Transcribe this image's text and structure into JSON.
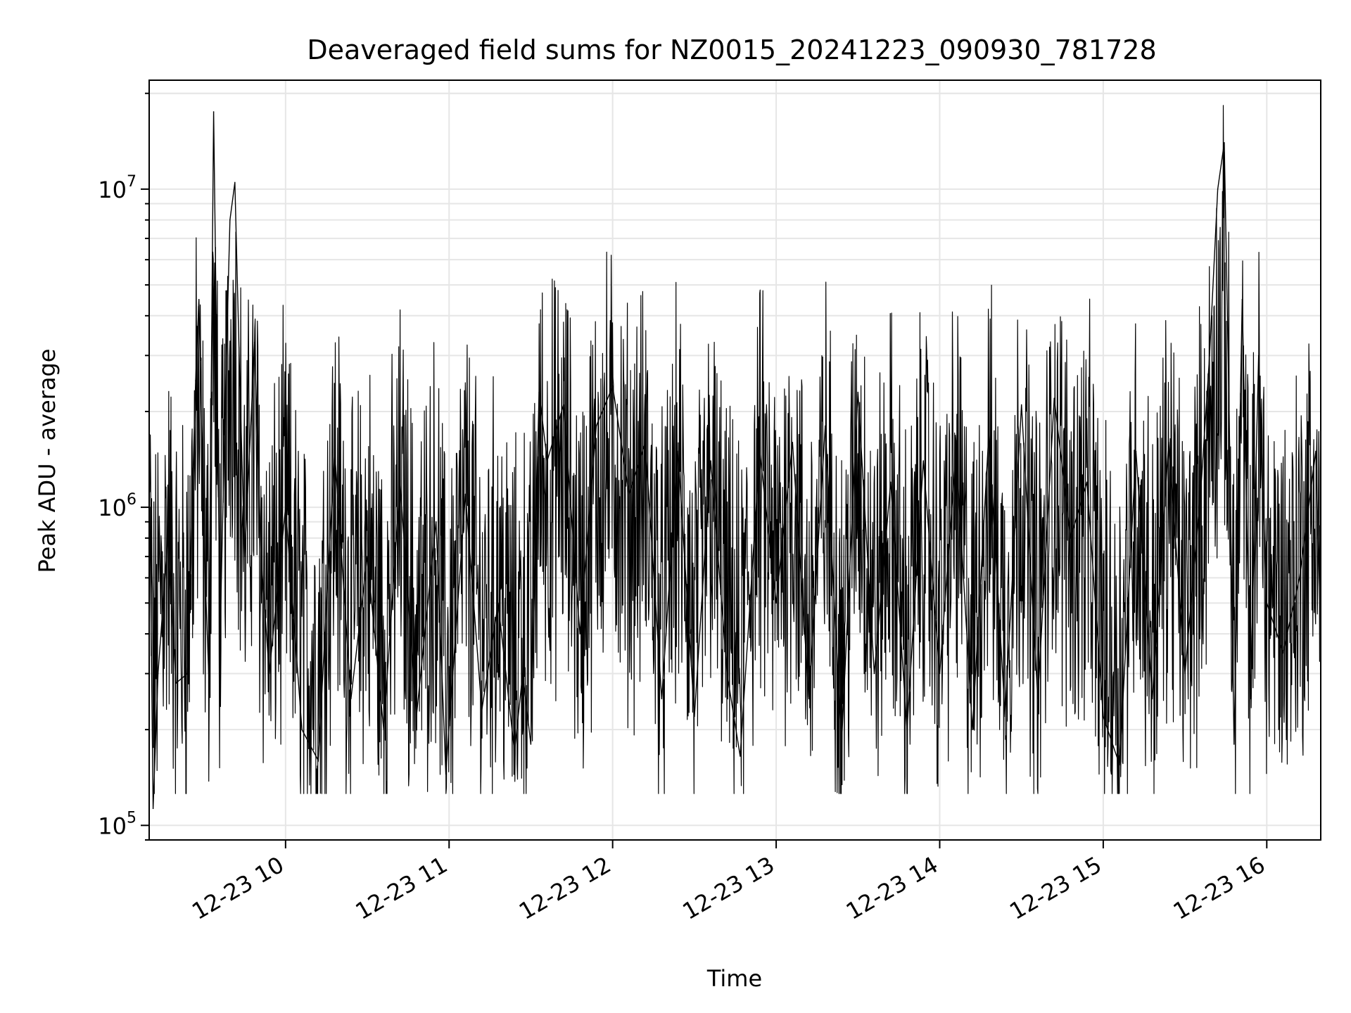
{
  "chart_data": {
    "type": "line",
    "title": "Deaveraged field sums for NZ0015_20241223_090930_781728",
    "xlabel": "Time",
    "ylabel": "Peak ADU - average",
    "yscale": "log",
    "grid": true,
    "line_color": "#000000",
    "x_tick_labels": [
      "12-23 10",
      "12-23 11",
      "12-23 12",
      "12-23 13",
      "12-23 14",
      "12-23 15",
      "12-23 16"
    ],
    "x_range_hours": [
      9.166,
      16.33
    ],
    "ylim": [
      90000,
      22000000
    ],
    "y_tick_bases": [
      "10",
      "10",
      "10"
    ],
    "y_tick_exponents": [
      "5",
      "6",
      "7"
    ],
    "series": [
      {
        "points": [
          [
            9.17,
            1000000
          ],
          [
            9.19,
            113000
          ],
          [
            9.22,
            300000
          ],
          [
            9.28,
            800000
          ],
          [
            9.33,
            280000
          ],
          [
            9.4,
            300000
          ],
          [
            9.45,
            2500000
          ],
          [
            9.47,
            4500000
          ],
          [
            9.5,
            800000
          ],
          [
            9.53,
            300000
          ],
          [
            9.56,
            17500000
          ],
          [
            9.6,
            400000
          ],
          [
            9.63,
            2000000
          ],
          [
            9.66,
            8000000
          ],
          [
            9.69,
            10500000
          ],
          [
            9.72,
            2500000
          ],
          [
            9.75,
            700000
          ],
          [
            9.78,
            1500000
          ],
          [
            9.81,
            3300000
          ],
          [
            9.85,
            700000
          ],
          [
            9.9,
            300000
          ],
          [
            10.0,
            1000000
          ],
          [
            10.1,
            200000
          ],
          [
            10.2,
            160000
          ],
          [
            10.3,
            1500000
          ],
          [
            10.4,
            250000
          ],
          [
            10.5,
            700000
          ],
          [
            10.6,
            200000
          ],
          [
            10.7,
            1200000
          ],
          [
            10.8,
            220000
          ],
          [
            10.92,
            900000
          ],
          [
            10.98,
            145000
          ],
          [
            11.1,
            1100000
          ],
          [
            11.2,
            230000
          ],
          [
            11.3,
            500000
          ],
          [
            11.4,
            170000
          ],
          [
            11.45,
            300000
          ],
          [
            11.5,
            180000
          ],
          [
            11.55,
            2300000
          ],
          [
            11.6,
            1400000
          ],
          [
            11.7,
            2100000
          ],
          [
            11.8,
            400000
          ],
          [
            11.9,
            1800000
          ],
          [
            12.0,
            2400000
          ],
          [
            12.1,
            1100000
          ],
          [
            12.2,
            1600000
          ],
          [
            12.3,
            250000
          ],
          [
            12.4,
            1500000
          ],
          [
            12.5,
            220000
          ],
          [
            12.6,
            1400000
          ],
          [
            12.7,
            300000
          ],
          [
            12.78,
            165000
          ],
          [
            12.9,
            1500000
          ],
          [
            13.0,
            500000
          ],
          [
            13.1,
            1600000
          ],
          [
            13.2,
            250000
          ],
          [
            13.3,
            1800000
          ],
          [
            13.4,
            180000
          ],
          [
            13.5,
            2300000
          ],
          [
            13.6,
            300000
          ],
          [
            13.7,
            1200000
          ],
          [
            13.8,
            200000
          ],
          [
            13.9,
            1400000
          ],
          [
            14.0,
            300000
          ],
          [
            14.1,
            1500000
          ],
          [
            14.2,
            200000
          ],
          [
            14.3,
            1700000
          ],
          [
            14.4,
            220000
          ],
          [
            14.5,
            2100000
          ],
          [
            14.6,
            250000
          ],
          [
            14.7,
            2200000
          ],
          [
            14.8,
            800000
          ],
          [
            14.9,
            1200000
          ],
          [
            15.0,
            220000
          ],
          [
            15.1,
            155000
          ],
          [
            15.2,
            1500000
          ],
          [
            15.3,
            250000
          ],
          [
            15.4,
            1600000
          ],
          [
            15.5,
            300000
          ],
          [
            15.6,
            1200000
          ],
          [
            15.65,
            3000000
          ],
          [
            15.7,
            10000000
          ],
          [
            15.74,
            14000000
          ],
          [
            15.77,
            2000000
          ],
          [
            15.8,
            180000
          ],
          [
            15.85,
            4500000
          ],
          [
            15.9,
            250000
          ],
          [
            15.95,
            3000000
          ],
          [
            16.0,
            500000
          ],
          [
            16.1,
            350000
          ],
          [
            16.2,
            600000
          ],
          [
            16.3,
            1500000
          ],
          [
            16.33,
            400000
          ]
        ]
      }
    ]
  }
}
